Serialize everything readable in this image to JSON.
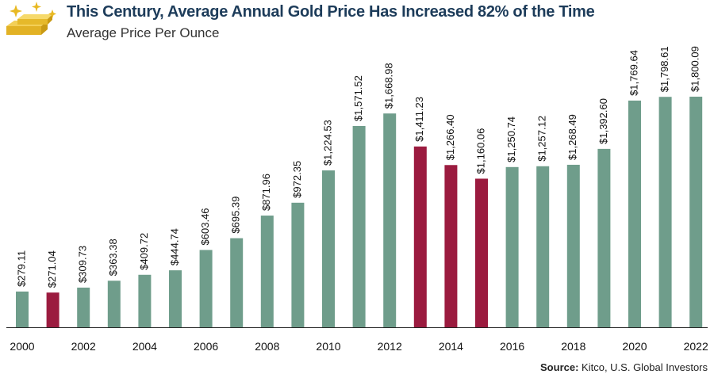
{
  "title": "This Century, Average Annual Gold Price Has Increased 82% of the Time",
  "subtitle": "Average Price Per Ounce",
  "source": {
    "label": "Source:",
    "text": "Kitco, U.S. Global Investors"
  },
  "colors": {
    "increase": "#6f9d8b",
    "decrease": "#9b1b3f",
    "title": "#1d3c5a",
    "gold": "#e8b923"
  },
  "logo": {
    "icon": "gold-bars-icon"
  },
  "chart_data": {
    "type": "bar",
    "title": "This Century, Average Annual Gold Price Has Increased 82% of the Time",
    "ylabel": "Average Price Per Ounce",
    "xlabel": "",
    "ylim": [
      0,
      1800.09
    ],
    "grid": false,
    "categories": [
      "2000",
      "2001",
      "2002",
      "2003",
      "2004",
      "2005",
      "2006",
      "2007",
      "2008",
      "2009",
      "2010",
      "2011",
      "2012",
      "2013",
      "2014",
      "2015",
      "2016",
      "2017",
      "2018",
      "2019",
      "2020",
      "2021",
      "2022"
    ],
    "values": [
      279.11,
      271.04,
      309.73,
      363.38,
      409.72,
      444.74,
      603.46,
      695.39,
      871.96,
      972.35,
      1224.53,
      1571.52,
      1668.98,
      1411.23,
      1266.4,
      1160.06,
      1250.74,
      1257.12,
      1268.49,
      1392.6,
      1769.64,
      1798.61,
      1800.09
    ],
    "data_labels": [
      "$279.11",
      "$271.04",
      "$309.73",
      "$363.38",
      "$409.72",
      "$444.74",
      "$603.46",
      "$695.39",
      "$871.96",
      "$972.35",
      "$1,224.53",
      "$1,571.52",
      "$1,668.98",
      "$1,411.23",
      "$1,266.40",
      "$1,160.06",
      "$1,250.74",
      "$1,257.12",
      "$1,268.49",
      "$1,392.60",
      "$1,769.64",
      "$1,798.61",
      "$1,800.09"
    ],
    "status": [
      "increase",
      "decrease",
      "increase",
      "increase",
      "increase",
      "increase",
      "increase",
      "increase",
      "increase",
      "increase",
      "increase",
      "increase",
      "increase",
      "decrease",
      "decrease",
      "decrease",
      "increase",
      "increase",
      "increase",
      "increase",
      "increase",
      "increase",
      "increase"
    ],
    "tick_labels": [
      "2000",
      "2002",
      "2004",
      "2006",
      "2008",
      "2010",
      "2012",
      "2014",
      "2016",
      "2018",
      "2020",
      "2022"
    ]
  }
}
